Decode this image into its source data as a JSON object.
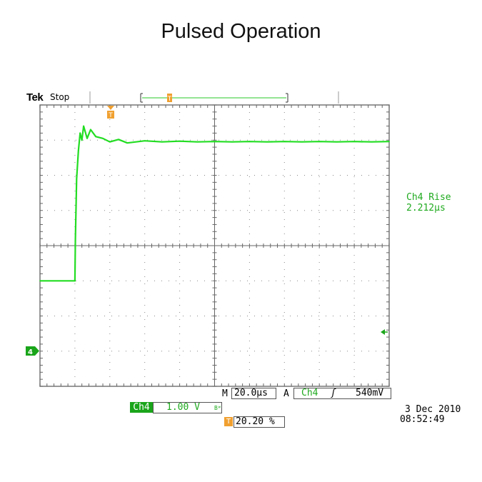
{
  "title": "Pulsed Operation",
  "scope": {
    "brand": "Tek",
    "state": "Stop",
    "trigger_marker": "T",
    "channel_marker": "4",
    "measurement": {
      "name": "Ch4 Rise",
      "value": "2.212µs"
    },
    "timebase": {
      "prefix": "M",
      "value": "20.0µs"
    },
    "trigger": {
      "prefix": "A",
      "source": "Ch4",
      "slope_symbol": "ʃ",
      "level": "540mV"
    },
    "channel": {
      "name": "Ch4",
      "scale": "1.00 V",
      "bw": "Bᵂ"
    },
    "trigger_position": "20.20 %",
    "date": "3 Dec  2010",
    "time": "08:52:49",
    "colors": {
      "trace": "#22dd22",
      "text_green": "#1faa1f",
      "marker_orange": "#f0a030",
      "channel_green": "#1aa51a"
    }
  },
  "chart_data": {
    "type": "line",
    "title": "",
    "xlabel": "",
    "ylabel": "",
    "xlim": [
      -20,
      180
    ],
    "ylim": [
      -4,
      4
    ],
    "x_units": "µs",
    "y_units": "V",
    "grid": true,
    "series": [
      {
        "x": [
          -20,
          0,
          0.3,
          1,
          2,
          3,
          4,
          5,
          7,
          9,
          12,
          16,
          20,
          25,
          30,
          40,
          50,
          60,
          70,
          80,
          90,
          100,
          110,
          120,
          130,
          140,
          150,
          160,
          170,
          180
        ],
        "values": [
          -1.0,
          -1.0,
          0.2,
          1.9,
          2.7,
          3.2,
          3.0,
          3.4,
          3.05,
          3.3,
          3.1,
          3.05,
          2.95,
          3.02,
          2.92,
          2.98,
          2.95,
          2.97,
          2.95,
          2.96,
          2.95,
          2.96,
          2.95,
          2.96,
          2.95,
          2.96,
          2.95,
          2.96,
          2.95,
          2.96
        ]
      }
    ]
  }
}
